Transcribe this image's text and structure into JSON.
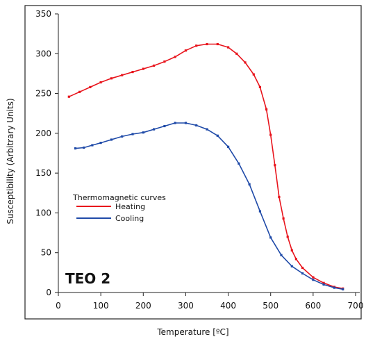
{
  "chart_data": {
    "type": "line",
    "xlabel": "Temperature [ºC]",
    "ylabel": "Susceptibility (Arbitrary Units)",
    "xlim": [
      0,
      700
    ],
    "ylim": [
      0,
      350
    ],
    "xticks": [
      0,
      100,
      200,
      300,
      400,
      500,
      600,
      700
    ],
    "yticks": [
      0,
      50,
      100,
      150,
      200,
      250,
      300,
      350
    ],
    "xtick_labels": [
      "0",
      "100",
      "200",
      "300",
      "400",
      "500",
      "600",
      "700"
    ],
    "ytick_labels": [
      "0",
      "50",
      "100",
      "150",
      "200",
      "250",
      "300",
      "350"
    ],
    "grid": false,
    "legend_title": "Thermomagnetic curves",
    "legend_position": "center-left",
    "annotation": "TEO 2",
    "series": [
      {
        "name": "Heating",
        "color": "#e8141c",
        "x": [
          25,
          50,
          75,
          100,
          125,
          150,
          175,
          200,
          225,
          250,
          275,
          300,
          325,
          350,
          375,
          400,
          420,
          440,
          460,
          475,
          490,
          500,
          510,
          520,
          530,
          540,
          550,
          560,
          575,
          600,
          625,
          650,
          670
        ],
        "y": [
          246,
          252,
          258,
          264,
          269,
          273,
          277,
          281,
          285,
          290,
          296,
          304,
          310,
          312,
          312,
          308,
          300,
          289,
          274,
          258,
          230,
          198,
          160,
          120,
          93,
          70,
          53,
          42,
          31,
          19,
          12,
          7,
          5
        ]
      },
      {
        "name": "Cooling",
        "color": "#1f4aa8",
        "x": [
          40,
          60,
          80,
          100,
          125,
          150,
          175,
          200,
          225,
          250,
          275,
          300,
          325,
          350,
          375,
          400,
          425,
          450,
          475,
          500,
          525,
          550,
          575,
          600,
          625,
          650,
          670
        ],
        "y": [
          181,
          182,
          185,
          188,
          192,
          196,
          199,
          201,
          205,
          209,
          213,
          213,
          210,
          205,
          197,
          183,
          162,
          136,
          102,
          69,
          47,
          33,
          24,
          16,
          10,
          6,
          4
        ]
      }
    ]
  }
}
